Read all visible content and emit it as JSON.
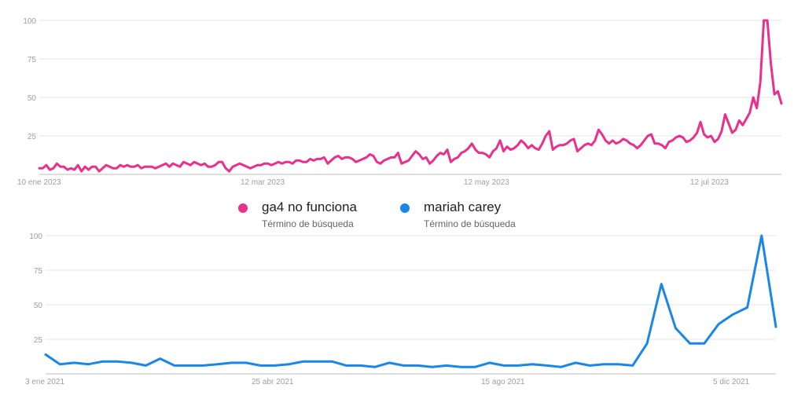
{
  "chart_data": [
    {
      "type": "line",
      "title": "",
      "xlabel": "",
      "ylabel": "",
      "ylim": [
        0,
        100
      ],
      "yticks": [
        25,
        50,
        75,
        100
      ],
      "grid": true,
      "xticks": [
        "10 ene 2023",
        "12 mar 2023",
        "12 may 2023",
        "12 jul 2023"
      ],
      "series": [
        {
          "name": "ga4 no funciona",
          "color": "#e8308c",
          "values": [
            4,
            4,
            6,
            3,
            4,
            7,
            5,
            5,
            3,
            4,
            3,
            6,
            2,
            5,
            3,
            5,
            5,
            2,
            4,
            6,
            5,
            4,
            4,
            6,
            5,
            6,
            5,
            5,
            6,
            4,
            5,
            5,
            5,
            4,
            5,
            6,
            7,
            5,
            7,
            6,
            5,
            8,
            7,
            6,
            8,
            7,
            6,
            7,
            5,
            5,
            6,
            8,
            8,
            4,
            2,
            5,
            6,
            7,
            6,
            5,
            4,
            5,
            6,
            6,
            7,
            7,
            6,
            7,
            8,
            7,
            8,
            8,
            7,
            9,
            9,
            8,
            8,
            10,
            9,
            10,
            10,
            11,
            7,
            9,
            11,
            12,
            10,
            11,
            11,
            10,
            8,
            9,
            10,
            11,
            13,
            12,
            8,
            7,
            9,
            10,
            11,
            11,
            14,
            7,
            8,
            9,
            12,
            15,
            13,
            10,
            11,
            7,
            9,
            12,
            14,
            13,
            16,
            8,
            10,
            11,
            14,
            15,
            17,
            20,
            16,
            14,
            14,
            13,
            11,
            15,
            17,
            22,
            15,
            18,
            16,
            17,
            19,
            22,
            20,
            17,
            19,
            17,
            16,
            20,
            25,
            28,
            16,
            18,
            19,
            19,
            20,
            22,
            23,
            15,
            17,
            19,
            20,
            19,
            22,
            29,
            26,
            22,
            20,
            22,
            20,
            21,
            23,
            22,
            20,
            19,
            17,
            19,
            22,
            25,
            26,
            20,
            20,
            19,
            17,
            21,
            22,
            24,
            25,
            24,
            21,
            22,
            24,
            27,
            34,
            26,
            24,
            25,
            21,
            23,
            28,
            39,
            33,
            27,
            29,
            35,
            32,
            36,
            40,
            50,
            43,
            60,
            100,
            100,
            72,
            52,
            54,
            46
          ]
        }
      ]
    },
    {
      "type": "line",
      "title": "",
      "xlabel": "",
      "ylabel": "",
      "ylim": [
        0,
        100
      ],
      "yticks": [
        25,
        50,
        75,
        100
      ],
      "grid": true,
      "xticks": [
        "3 ene 2021",
        "25 abr 2021",
        "15 ago 2021",
        "5 dic 2021"
      ],
      "series": [
        {
          "name": "mariah carey",
          "color": "#1a86e8",
          "values": [
            14,
            7,
            8,
            7,
            9,
            9,
            8,
            6,
            11,
            6,
            6,
            6,
            7,
            8,
            8,
            6,
            6,
            7,
            9,
            9,
            9,
            6,
            6,
            5,
            8,
            6,
            6,
            5,
            6,
            5,
            5,
            8,
            6,
            6,
            7,
            6,
            5,
            8,
            6,
            7,
            7,
            6,
            22,
            65,
            33,
            22,
            22,
            36,
            43,
            48,
            100,
            34
          ]
        }
      ]
    }
  ],
  "legend": [
    {
      "name": "ga4 no funciona",
      "subtitle": "Término de búsqueda",
      "color": "#e8308c"
    },
    {
      "name": "mariah carey",
      "subtitle": "Término de búsqueda",
      "color": "#1a86e8"
    }
  ]
}
